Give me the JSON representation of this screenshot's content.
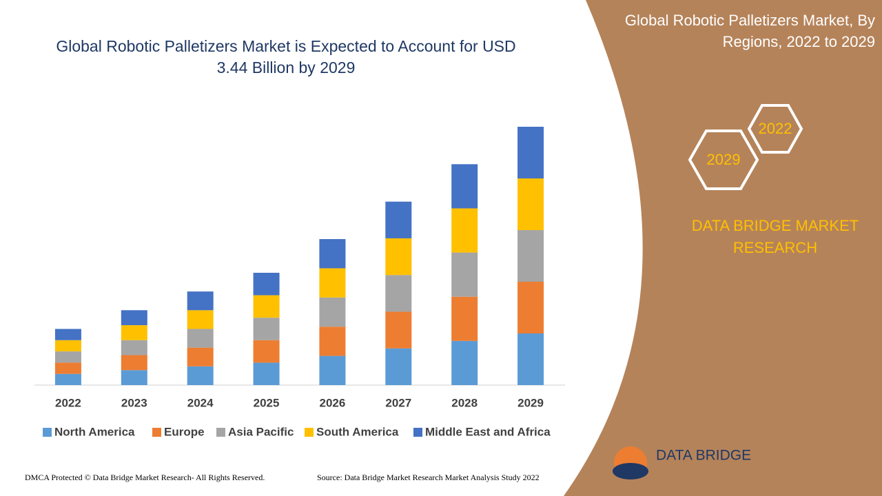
{
  "chart_data": {
    "type": "stacked_bar",
    "title": "Global Robotic Palletizers Market is Expected to Account for USD 3.44 Billion by 2029",
    "categories": [
      "2022",
      "2023",
      "2024",
      "2025",
      "2026",
      "2027",
      "2028",
      "2029"
    ],
    "series": [
      {
        "name": "North America",
        "color": "#5b9bd5",
        "values": [
          0.15,
          0.2,
          0.25,
          0.3,
          0.39,
          0.49,
          0.59,
          0.69
        ]
      },
      {
        "name": "Europe",
        "color": "#ed7d31",
        "values": [
          0.15,
          0.2,
          0.25,
          0.3,
          0.39,
          0.49,
          0.59,
          0.69
        ]
      },
      {
        "name": "Asia Pacific",
        "color": "#a5a5a5",
        "values": [
          0.15,
          0.2,
          0.25,
          0.3,
          0.39,
          0.49,
          0.59,
          0.69
        ]
      },
      {
        "name": "South America",
        "color": "#ffc000",
        "values": [
          0.15,
          0.2,
          0.25,
          0.3,
          0.39,
          0.49,
          0.59,
          0.69
        ]
      },
      {
        "name": "Middle East and Africa",
        "color": "#4472c4",
        "values": [
          0.15,
          0.2,
          0.25,
          0.3,
          0.39,
          0.49,
          0.59,
          0.69
        ]
      }
    ]
  },
  "panel": {
    "title": "Global Robotic Palletizers Market, By Regions, 2022 to 2029",
    "hexagons": [
      "2022",
      "2029"
    ],
    "brand": "DATA BRIDGE MARKET RESEARCH",
    "logo": "DATA BRIDGE"
  },
  "footer": {
    "left": "DMCA Protected © Data Bridge Market Research- All Rights Reserved.",
    "right": "Source: Data Bridge Market Research Market Analysis Study 2022"
  }
}
